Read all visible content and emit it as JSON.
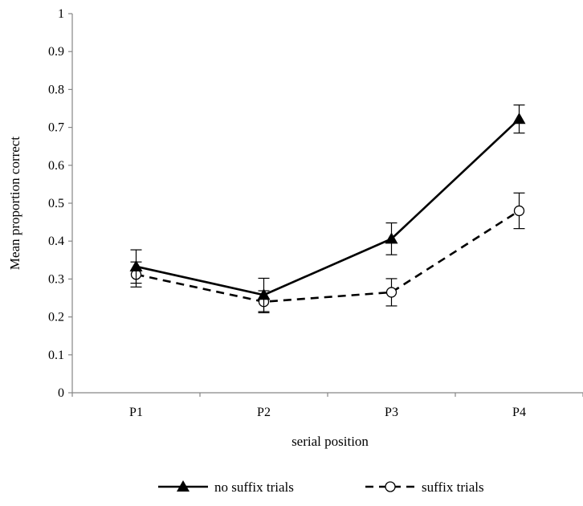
{
  "chart_data": {
    "type": "line",
    "title": "",
    "xlabel": "serial position",
    "ylabel": "Mean proportion correct",
    "categories": [
      "P1",
      "P2",
      "P3",
      "P4"
    ],
    "ylim": [
      0,
      1
    ],
    "yticks": [
      "0",
      "0.1",
      "0.2",
      "0.3",
      "0.4",
      "0.5",
      "0.6",
      "0.7",
      "0.8",
      "0.9",
      "1"
    ],
    "grid": false,
    "legend_position": "bottom-center",
    "series": [
      {
        "name": "no suffix trials",
        "values": [
          0.333,
          0.258,
          0.406,
          0.722
        ],
        "error": [
          0.044,
          0.044,
          0.042,
          0.037
        ],
        "line_style": "solid",
        "marker": "filled-triangle",
        "color": "#000000"
      },
      {
        "name": "suffix trials",
        "values": [
          0.312,
          0.24,
          0.265,
          0.48
        ],
        "error": [
          0.033,
          0.029,
          0.036,
          0.047
        ],
        "line_style": "dashed",
        "marker": "open-circle",
        "color": "#000000"
      }
    ]
  }
}
